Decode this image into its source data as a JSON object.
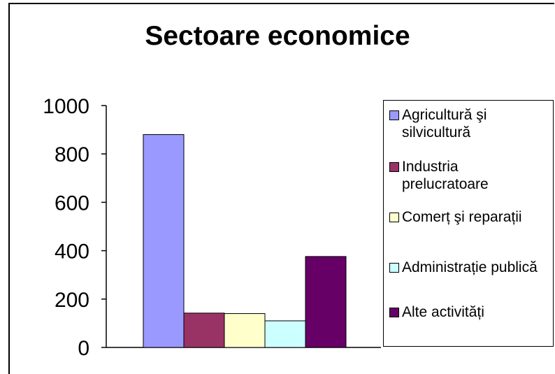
{
  "chart_data": {
    "type": "bar",
    "title": "Sectoare economice",
    "xlabel": "",
    "ylabel": "",
    "ylim": [
      0,
      1000
    ],
    "yticks": [
      "0",
      "200",
      "400",
      "600",
      "800",
      "1000"
    ],
    "grid": false,
    "legend_position": "right",
    "categories": [
      "Agricultură şi silvicultură",
      "Industria prelucratoare",
      "Comerț şi reparații",
      "Administrație publică",
      "Alte activități"
    ],
    "values": [
      880,
      142,
      140,
      110,
      376
    ],
    "colors": [
      "#9999FF",
      "#993366",
      "#FFFFCC",
      "#CCFFFF",
      "#660066"
    ]
  }
}
